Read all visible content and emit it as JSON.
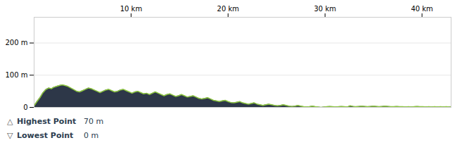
{
  "chart_data": {
    "type": "area",
    "x": [
      0,
      0.3,
      0.6,
      0.9,
      1.2,
      1.5,
      1.8,
      2.0,
      2.3,
      2.6,
      2.9,
      3.2,
      3.5,
      3.8,
      4.1,
      4.4,
      4.7,
      5.0,
      5.3,
      5.6,
      5.9,
      6.2,
      6.5,
      6.8,
      7.1,
      7.4,
      7.7,
      8.0,
      8.3,
      8.6,
      8.9,
      9.2,
      9.5,
      9.8,
      10.1,
      10.4,
      10.7,
      11.0,
      11.3,
      11.6,
      11.9,
      12.2,
      12.5,
      12.8,
      13.1,
      13.4,
      13.7,
      14.0,
      14.3,
      14.6,
      14.9,
      15.2,
      15.5,
      15.8,
      16.1,
      16.4,
      16.7,
      17.0,
      17.3,
      17.6,
      17.9,
      18.2,
      18.5,
      18.8,
      19.1,
      19.4,
      19.7,
      20.0,
      20.3,
      20.6,
      20.9,
      21.2,
      21.5,
      21.8,
      22.1,
      22.4,
      22.7,
      23.0,
      23.3,
      23.6,
      23.9,
      24.2,
      24.5,
      24.8,
      25.1,
      25.4,
      25.7,
      26.0,
      26.3,
      26.6,
      26.9,
      27.2,
      27.5,
      27.8,
      28.1,
      28.4,
      28.7,
      29.0,
      29.3,
      29.6,
      29.9,
      30.2,
      30.5,
      30.8,
      31.1,
      31.4,
      31.7,
      32.0,
      32.3,
      32.6,
      32.9,
      33.2,
      33.5,
      33.8,
      34.1,
      34.4,
      34.7,
      35.0,
      35.3,
      35.6,
      35.9,
      36.2,
      36.5,
      36.8,
      37.1,
      37.4,
      37.7,
      38.0,
      38.3,
      38.6,
      38.9,
      39.2,
      39.5,
      39.8,
      40.1,
      40.4,
      40.7,
      41.0,
      41.3,
      41.6,
      41.9,
      42.2,
      42.5,
      42.8,
      43.0
    ],
    "series": [
      {
        "type": "area",
        "color": "#2d3748",
        "values": [
          5,
          18,
          30,
          45,
          55,
          60,
          58,
          62,
          65,
          68,
          70,
          68,
          65,
          60,
          55,
          50,
          48,
          52,
          56,
          60,
          58,
          54,
          50,
          46,
          50,
          54,
          56,
          52,
          48,
          50,
          54,
          56,
          52,
          48,
          44,
          48,
          50,
          46,
          42,
          44,
          40,
          44,
          48,
          44,
          40,
          36,
          40,
          42,
          38,
          34,
          36,
          40,
          36,
          32,
          34,
          36,
          32,
          28,
          26,
          28,
          30,
          26,
          22,
          20,
          18,
          20,
          22,
          18,
          15,
          14,
          16,
          18,
          14,
          12,
          10,
          12,
          14,
          10,
          8,
          6,
          8,
          10,
          8,
          6,
          5,
          6,
          8,
          6,
          4,
          3,
          4,
          6,
          4,
          2,
          1,
          2,
          4,
          2,
          1,
          0,
          1,
          2,
          3,
          2,
          1,
          2,
          3,
          2,
          1,
          5,
          3,
          2,
          3,
          4,
          3,
          2,
          3,
          4,
          3,
          2,
          3,
          4,
          3,
          2,
          2,
          3,
          2,
          2,
          1,
          2,
          1,
          2,
          3,
          2,
          2,
          1,
          2,
          1,
          2,
          1,
          2,
          1,
          2,
          1,
          2
        ]
      },
      {
        "type": "line",
        "color": "#8dc63f",
        "values": [
          5,
          18,
          30,
          45,
          55,
          60,
          58,
          62,
          65,
          68,
          70,
          68,
          65,
          60,
          55,
          50,
          48,
          52,
          56,
          60,
          58,
          54,
          50,
          46,
          50,
          54,
          56,
          52,
          48,
          50,
          54,
          56,
          52,
          48,
          44,
          48,
          50,
          46,
          42,
          44,
          40,
          44,
          48,
          44,
          40,
          36,
          40,
          42,
          38,
          34,
          36,
          40,
          36,
          32,
          34,
          36,
          32,
          28,
          26,
          28,
          30,
          26,
          22,
          20,
          18,
          20,
          22,
          18,
          15,
          14,
          16,
          18,
          14,
          12,
          10,
          12,
          14,
          10,
          8,
          6,
          8,
          10,
          8,
          6,
          5,
          6,
          8,
          6,
          4,
          3,
          4,
          6,
          4,
          2,
          1,
          2,
          4,
          2,
          1,
          0,
          1,
          2,
          3,
          2,
          1,
          2,
          3,
          2,
          1,
          5,
          3,
          2,
          3,
          4,
          3,
          2,
          3,
          4,
          3,
          2,
          3,
          4,
          3,
          2,
          2,
          3,
          2,
          2,
          1,
          2,
          1,
          2,
          3,
          2,
          2,
          1,
          2,
          1,
          2,
          1,
          2,
          1,
          2,
          1,
          2
        ]
      }
    ],
    "xlim": [
      0,
      43
    ],
    "xticks": [
      {
        "value": 10,
        "label": "10 km"
      },
      {
        "value": 20,
        "label": "20 km"
      },
      {
        "value": 30,
        "label": "30 km"
      },
      {
        "value": 40,
        "label": "40 km"
      }
    ],
    "ylim": [
      0,
      280
    ],
    "yticks": [
      0,
      {
        "value": 100,
        "label": "100 m"
      },
      {
        "value": 200,
        "label": "200 m"
      }
    ],
    "grid": "y",
    "annotations": [
      {
        "symbol": "△",
        "text": "Highest Point",
        "label": "70 m",
        "color": "#2d3e50"
      },
      {
        "symbol": "▽",
        "text": "Lowest Point",
        "label": "0 m",
        "color": "#2d3e50"
      }
    ]
  }
}
